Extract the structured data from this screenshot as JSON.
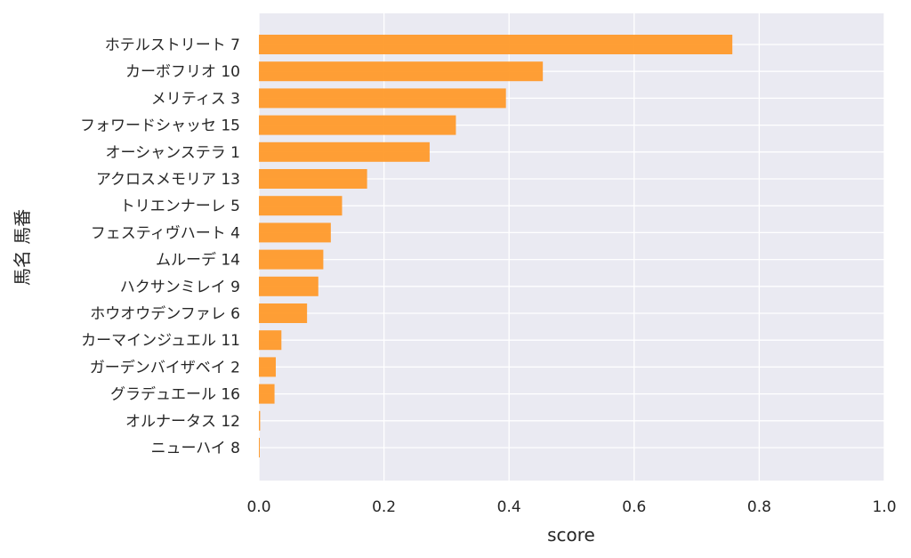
{
  "chart_data": {
    "type": "bar",
    "orientation": "horizontal",
    "xlabel": "score",
    "ylabel": "馬名 馬番",
    "xlim": [
      0.0,
      1.0
    ],
    "xticks": [
      "0.0",
      "0.2",
      "0.4",
      "0.6",
      "0.8",
      "1.0"
    ],
    "grid": true,
    "categories": [
      "ホテルストリート 7",
      "カーボフリオ 10",
      "メリティス 3",
      "フォワードシャッセ 15",
      "オーシャンステラ 1",
      "アクロスメモリア 13",
      "トリエンナーレ 5",
      "フェスティヴハート 4",
      "ムルーデ 14",
      "ハクサンミレイ 9",
      "ホウオウデンファレ 6",
      "カーマインジュエル 11",
      "ガーデンバイザベイ 2",
      "グラデュエール 16",
      "オルナータス 12",
      "ニューハイ 8"
    ],
    "values": [
      0.757,
      0.454,
      0.395,
      0.315,
      0.273,
      0.173,
      0.133,
      0.115,
      0.103,
      0.095,
      0.077,
      0.036,
      0.027,
      0.025,
      0.002,
      0.001
    ],
    "colors": {
      "bar": "#ff9a2a",
      "background": "#eaeaf2",
      "grid": "#ffffff"
    }
  }
}
